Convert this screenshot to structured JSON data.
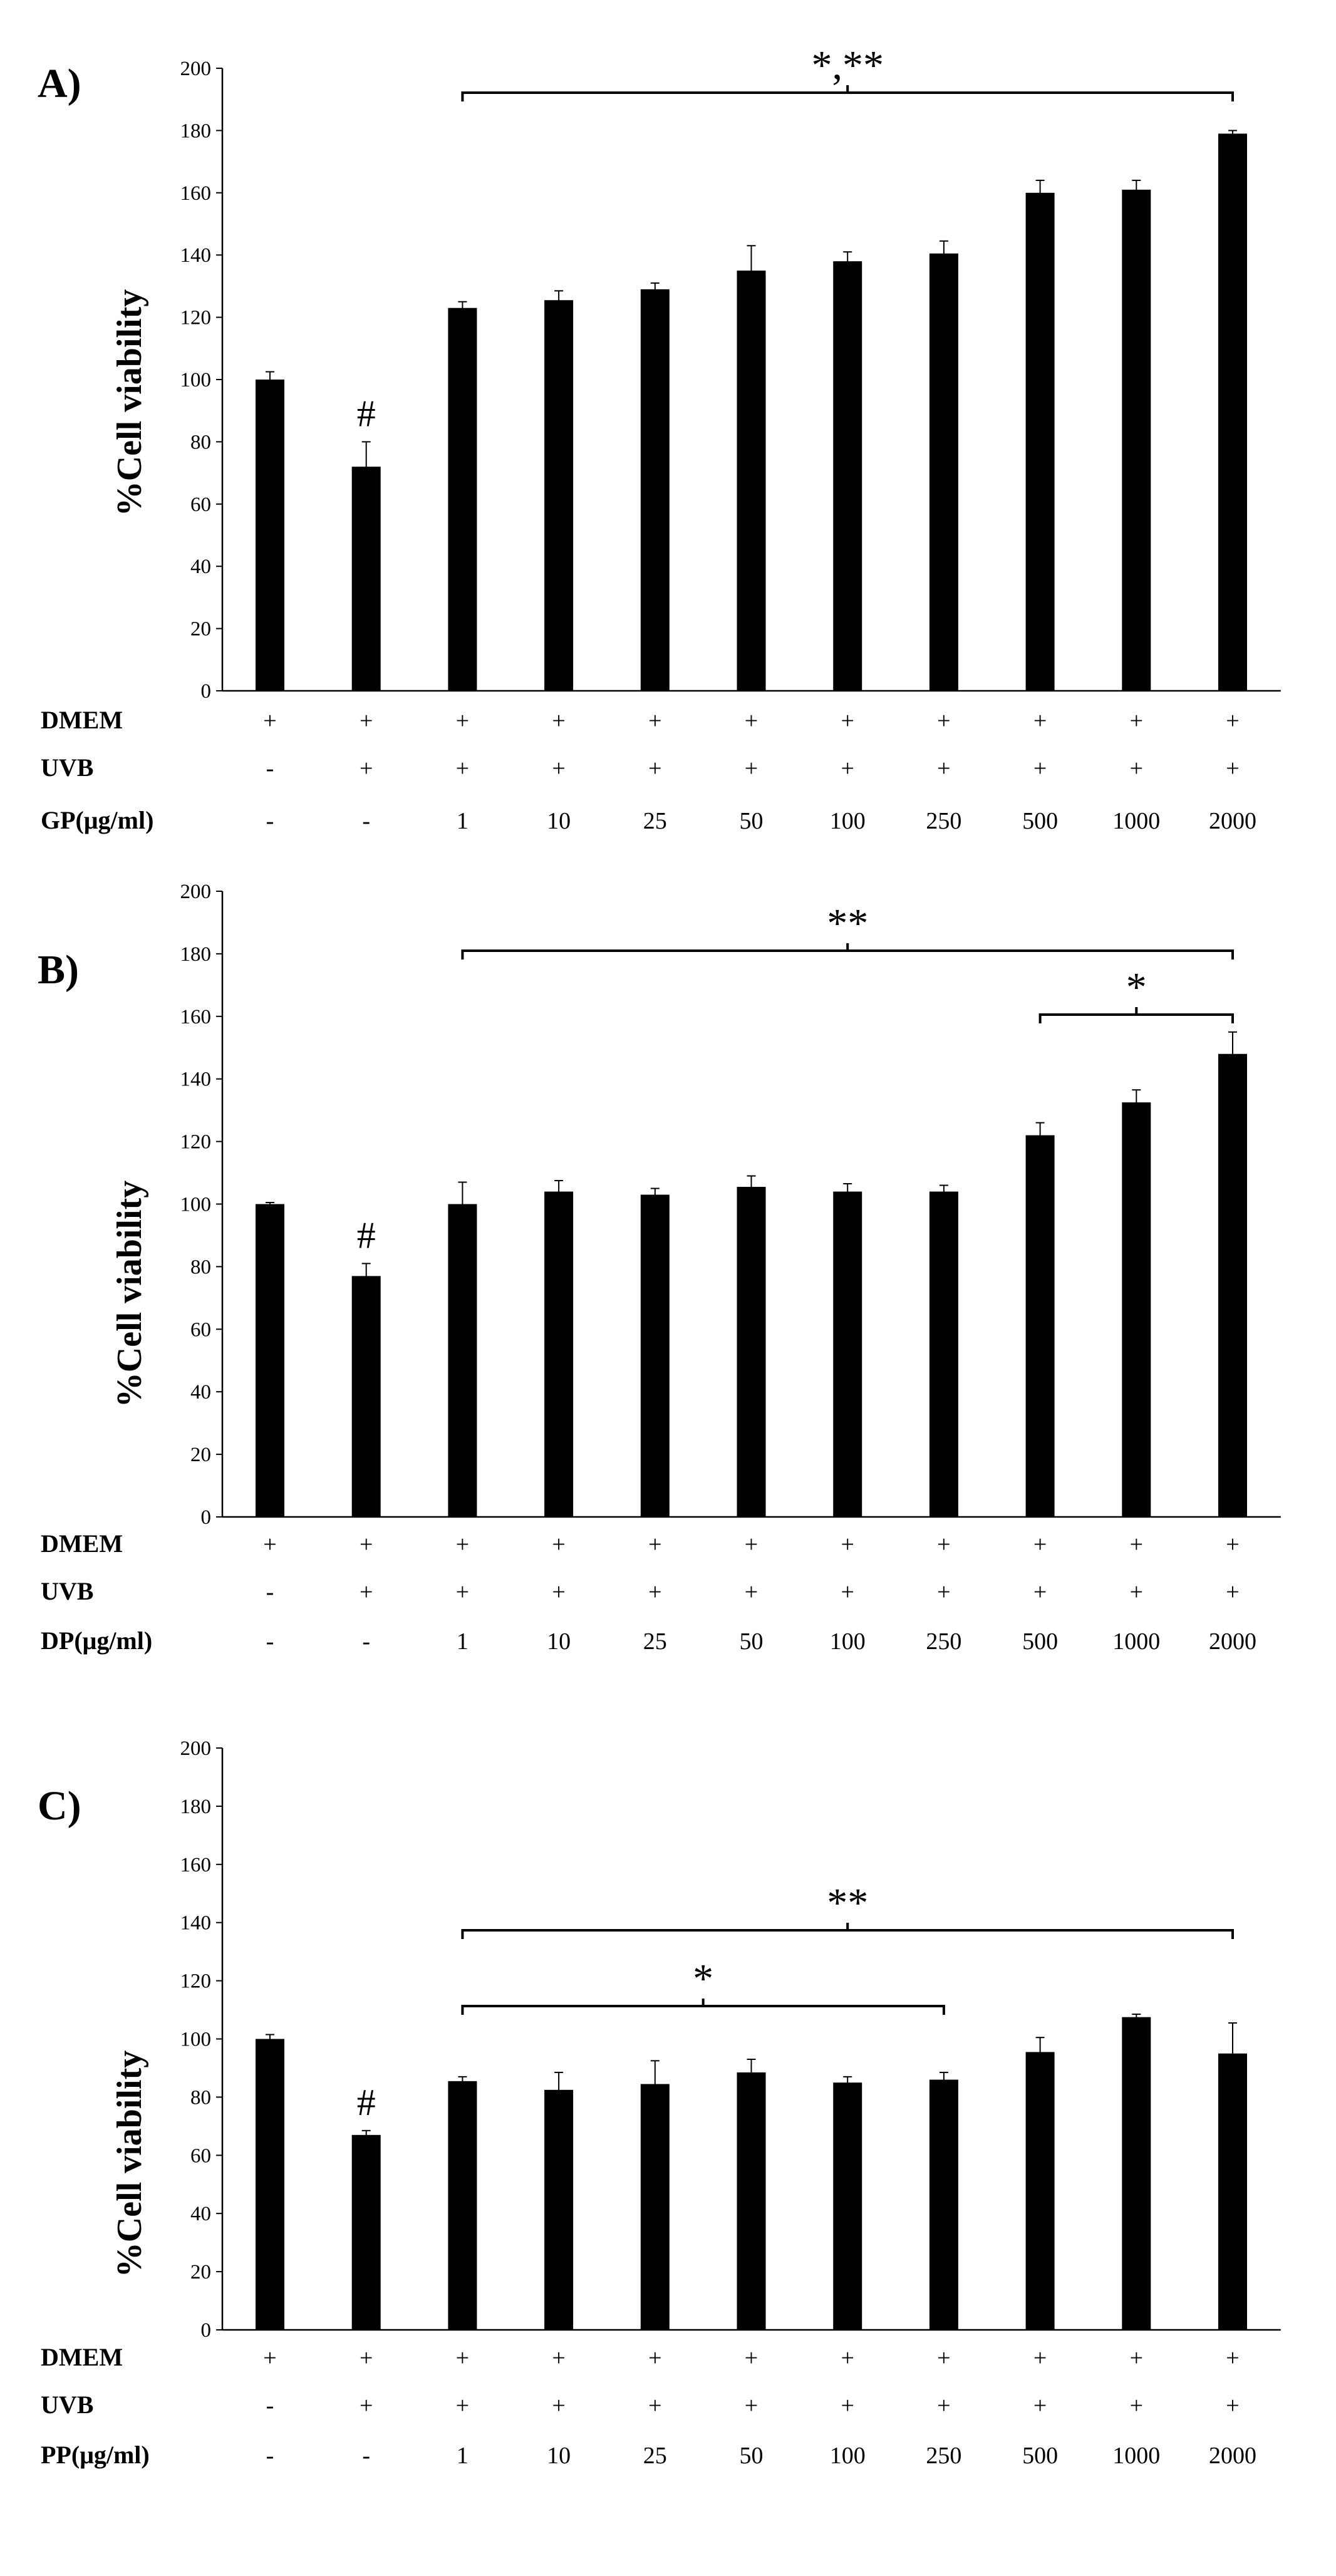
{
  "chart_data": [
    {
      "type": "bar",
      "panel_label": "A)",
      "ylabel": "%Cell viability",
      "ylim": [
        0,
        200
      ],
      "yticks": [
        0,
        20,
        40,
        60,
        80,
        100,
        120,
        140,
        160,
        180,
        200
      ],
      "categories": [
        "-",
        "-",
        "1",
        "10",
        "25",
        "50",
        "100",
        "250",
        "500",
        "1000",
        "2000"
      ],
      "values": [
        100,
        72,
        123,
        125.5,
        129,
        135,
        138,
        140.5,
        160,
        161,
        179
      ],
      "errors": [
        2.5,
        8,
        2,
        3,
        2,
        8,
        3,
        4,
        4,
        3,
        1
      ],
      "rows": [
        {
          "label": "DMEM",
          "cells": [
            "+",
            "+",
            "+",
            "+",
            "+",
            "+",
            "+",
            "+",
            "+",
            "+",
            "+"
          ]
        },
        {
          "label": "UVB",
          "cells": [
            "-",
            "+",
            "+",
            "+",
            "+",
            "+",
            "+",
            "+",
            "+",
            "+",
            "+"
          ]
        },
        {
          "label": "GP(μg/ml)",
          "cells": [
            "-",
            "-",
            "1",
            "10",
            "25",
            "50",
            "100",
            "250",
            "500",
            "1000",
            "2000"
          ]
        }
      ],
      "marks": [
        {
          "bar": 1,
          "text": "#"
        }
      ],
      "brackets": [
        {
          "from": 2,
          "to": 10,
          "level": 0,
          "text": "*,**"
        }
      ]
    },
    {
      "type": "bar",
      "panel_label": "B)",
      "ylabel": "%Cell viability",
      "ylim": [
        0,
        200
      ],
      "yticks": [
        0,
        20,
        40,
        60,
        80,
        100,
        120,
        140,
        160,
        180,
        200
      ],
      "categories": [
        "-",
        "-",
        "1",
        "10",
        "25",
        "50",
        "100",
        "250",
        "500",
        "1000",
        "2000"
      ],
      "values": [
        100,
        77,
        100,
        104,
        103,
        105.5,
        104,
        104,
        122,
        132.5,
        148
      ],
      "errors": [
        0.5,
        4,
        7,
        3.5,
        2,
        3.5,
        2.5,
        2,
        4,
        4,
        7
      ],
      "rows": [
        {
          "label": "DMEM",
          "cells": [
            "+",
            "+",
            "+",
            "+",
            "+",
            "+",
            "+",
            "+",
            "+",
            "+",
            "+"
          ]
        },
        {
          "label": "UVB",
          "cells": [
            "-",
            "+",
            "+",
            "+",
            "+",
            "+",
            "+",
            "+",
            "+",
            "+",
            "+"
          ]
        },
        {
          "label": "DP(μg/ml)",
          "cells": [
            "-",
            "-",
            "1",
            "10",
            "25",
            "50",
            "100",
            "250",
            "500",
            "1000",
            "2000"
          ]
        }
      ],
      "marks": [
        {
          "bar": 1,
          "text": "#"
        }
      ],
      "brackets": [
        {
          "from": 2,
          "to": 10,
          "level": 0,
          "text": "**"
        },
        {
          "from": 8,
          "to": 10,
          "level": 1,
          "text": "*"
        }
      ]
    },
    {
      "type": "bar",
      "panel_label": "C)",
      "ylabel": "%Cell viability",
      "ylim": [
        0,
        200
      ],
      "yticks": [
        0,
        20,
        40,
        60,
        80,
        100,
        120,
        140,
        160,
        180,
        200
      ],
      "categories": [
        "-",
        "-",
        "1",
        "10",
        "25",
        "50",
        "100",
        "250",
        "500",
        "1000",
        "2000"
      ],
      "values": [
        100,
        67,
        85.5,
        82.5,
        84.5,
        88.5,
        85,
        86,
        95.5,
        107.5,
        95
      ],
      "errors": [
        1.5,
        1.5,
        1.5,
        6,
        8,
        4.5,
        2,
        2.5,
        5,
        1,
        10.5
      ],
      "rows": [
        {
          "label": "DMEM",
          "cells": [
            "+",
            "+",
            "+",
            "+",
            "+",
            "+",
            "+",
            "+",
            "+",
            "+",
            "+"
          ]
        },
        {
          "label": "UVB",
          "cells": [
            "-",
            "+",
            "+",
            "+",
            "+",
            "+",
            "+",
            "+",
            "+",
            "+",
            "+"
          ]
        },
        {
          "label": "PP(μg/ml)",
          "cells": [
            "-",
            "-",
            "1",
            "10",
            "25",
            "50",
            "100",
            "250",
            "500",
            "1000",
            "2000"
          ]
        }
      ],
      "marks": [
        {
          "bar": 1,
          "text": "#"
        }
      ],
      "brackets": [
        {
          "from": 2,
          "to": 10,
          "level": 0,
          "text": "**"
        },
        {
          "from": 2,
          "to": 7,
          "level": 1,
          "text": "*"
        }
      ]
    }
  ]
}
